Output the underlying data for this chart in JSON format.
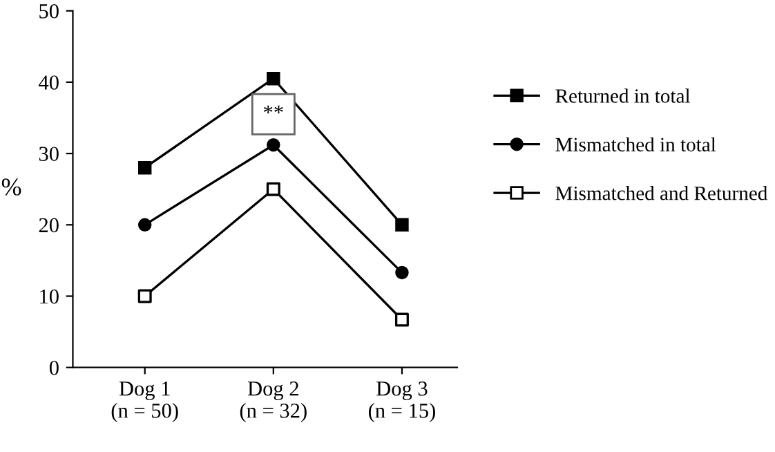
{
  "chart_data": {
    "type": "line",
    "ylabel": "%",
    "categories": [
      "Dog 1\n(n = 50)",
      "Dog 2\n(n = 32)",
      "Dog 3\n(n = 15)"
    ],
    "series": [
      {
        "name": "Returned in total",
        "color": "#000000",
        "marker": "square",
        "values": [
          28,
          40.5,
          20
        ]
      },
      {
        "name": "Mismatched in total",
        "color": "#000000",
        "marker": "circle",
        "values": [
          20,
          31.2,
          13.3
        ]
      },
      {
        "name": "Mismatched and Returned",
        "color": "#000000",
        "marker": "square",
        "colors": [
          "#ffffff",
          "#ffffff",
          "#ffffff"
        ],
        "values": [
          10,
          25,
          6.7
        ]
      }
    ],
    "ylim": [
      0,
      50
    ],
    "yticks": [
      0,
      10,
      20,
      30,
      40,
      50
    ],
    "annotations": [
      {
        "text": "**",
        "x": "Dog 2\n(n = 32)",
        "y": 35.5
      }
    ],
    "grid": false,
    "legend": "right",
    "line_style": "solid"
  }
}
